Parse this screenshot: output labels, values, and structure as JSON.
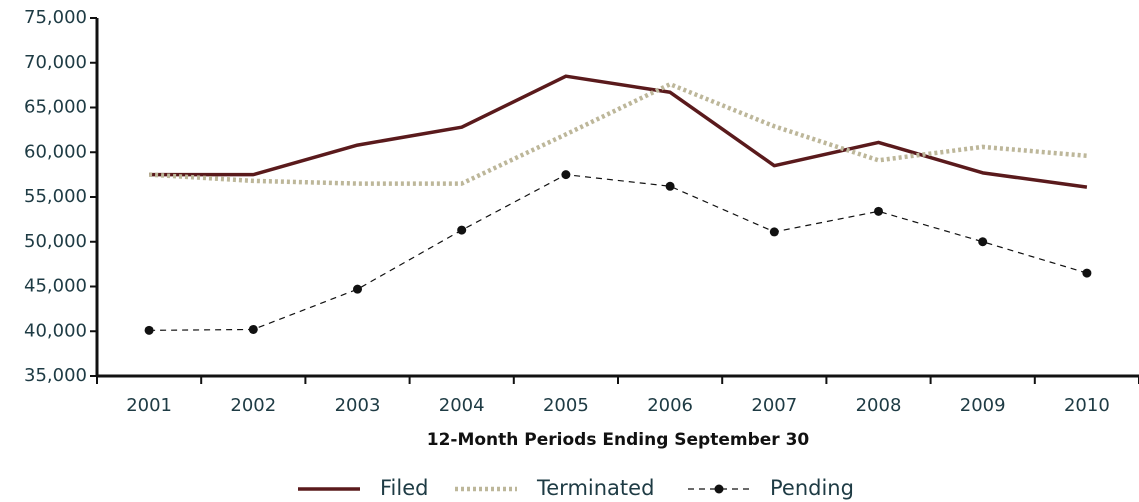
{
  "chart_data": {
    "type": "line",
    "x_label": "12-Month Periods Ending September 30",
    "categories": [
      "2001",
      "2002",
      "2003",
      "2004",
      "2005",
      "2006",
      "2007",
      "2008",
      "2009",
      "2010"
    ],
    "series": [
      {
        "name": "Filed",
        "color": "#5a1a1c",
        "values": [
          57500,
          57500,
          60800,
          62800,
          68500,
          66700,
          58500,
          61100,
          57700,
          56100
        ]
      },
      {
        "name": "Terminated",
        "color": "#bdb79a",
        "values": [
          57500,
          56800,
          56500,
          56500,
          62000,
          67600,
          62900,
          59100,
          60600,
          59600
        ]
      },
      {
        "name": "Pending",
        "color": "#111111",
        "values": [
          40100,
          40200,
          44700,
          51300,
          57500,
          56200,
          51100,
          53400,
          50000,
          46500
        ]
      }
    ],
    "ylim": [
      35000,
      75000
    ],
    "yticks": [
      {
        "value": 35000,
        "label": "35,000"
      },
      {
        "value": 40000,
        "label": "40,000"
      },
      {
        "value": 45000,
        "label": "45,000"
      },
      {
        "value": 50000,
        "label": "50,000"
      },
      {
        "value": 55000,
        "label": "55,000"
      },
      {
        "value": 60000,
        "label": "60,000"
      },
      {
        "value": 65000,
        "label": "65,000"
      },
      {
        "value": 70000,
        "label": "70,000"
      },
      {
        "value": 75000,
        "label": "75,000"
      }
    ],
    "legend": "bottom"
  }
}
